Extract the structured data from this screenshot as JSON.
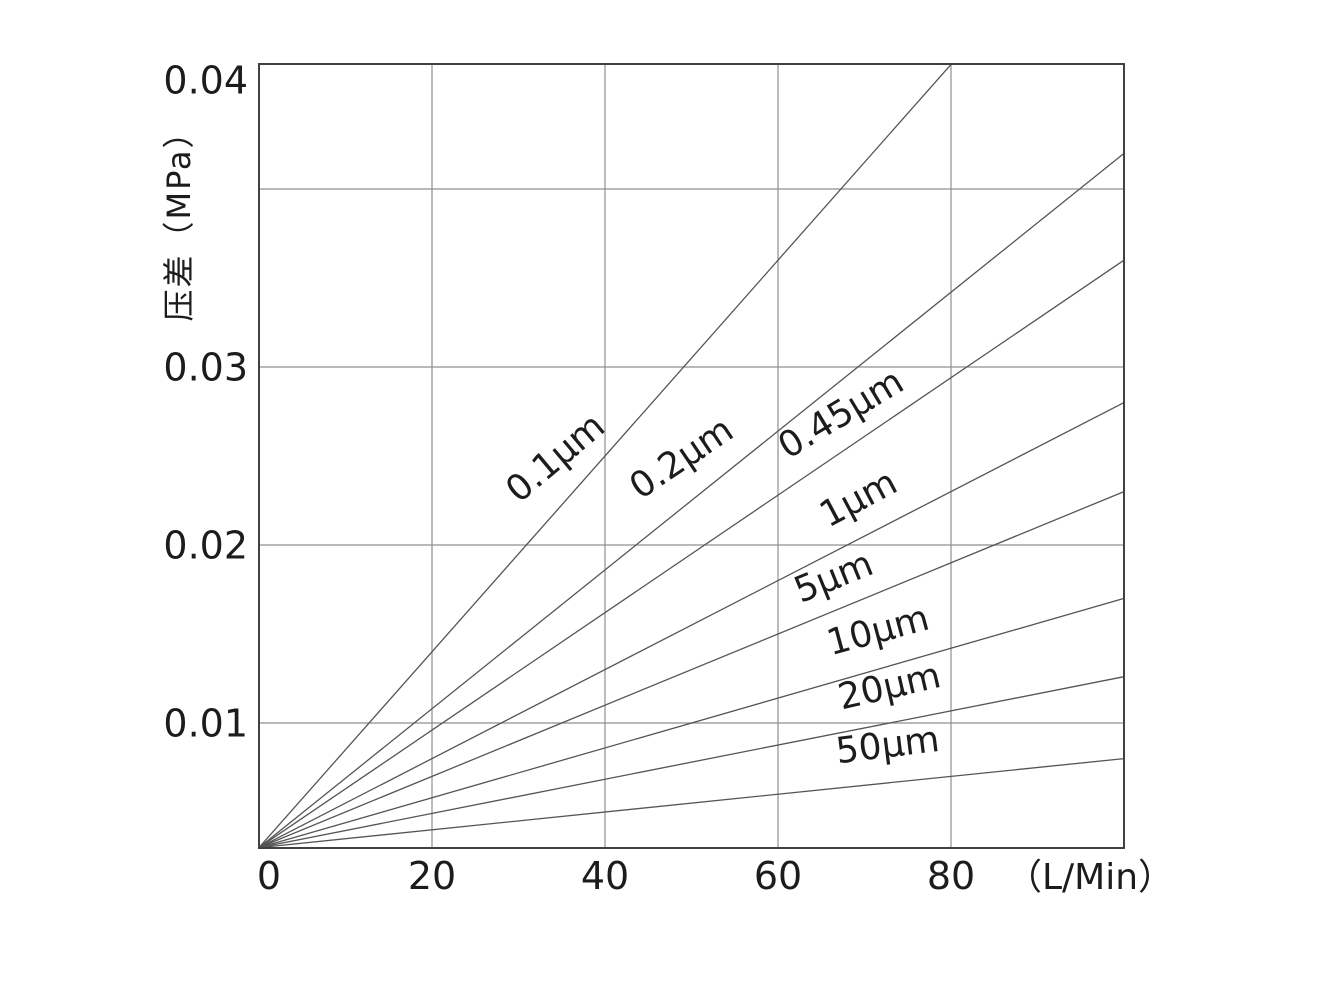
{
  "page": {
    "background": "#ffffff",
    "description": "Differential pressure vs flow rate curves for filter cartridges of different micron ratings"
  },
  "chart_data": {
    "type": "line",
    "title": "",
    "xlabel": "（L/Min）",
    "ylabel": "压差（MPa）",
    "x_axis": {
      "min": 0,
      "max": 100,
      "ticks": [
        0,
        20,
        40,
        60,
        80
      ],
      "tick_labels": [
        "0",
        "20",
        "40",
        "60",
        "80"
      ],
      "gridlines": [
        20,
        40,
        60,
        80
      ],
      "grid": true
    },
    "y_axis": {
      "min": 0.003,
      "max": 0.047,
      "ticks": [
        0.04,
        0.03,
        0.02,
        0.01
      ],
      "tick_labels": [
        "0.04",
        "0.03",
        "0.02",
        "0.01"
      ],
      "gridlines": [
        0.04,
        0.03,
        0.02,
        0.01
      ],
      "grid": true
    },
    "series": [
      {
        "name": "0.1μm",
        "points": [
          [
            0,
            0.003
          ],
          [
            80,
            0.047
          ]
        ]
      },
      {
        "name": "0.2μm",
        "points": [
          [
            0,
            0.003
          ],
          [
            100,
            0.042
          ]
        ]
      },
      {
        "name": "0.45μm",
        "points": [
          [
            0,
            0.003
          ],
          [
            100,
            0.036
          ]
        ]
      },
      {
        "name": "1μm",
        "points": [
          [
            0,
            0.003
          ],
          [
            100,
            0.028
          ]
        ]
      },
      {
        "name": "5μm",
        "points": [
          [
            0,
            0.003
          ],
          [
            100,
            0.023
          ]
        ]
      },
      {
        "name": "10μm",
        "points": [
          [
            0,
            0.003
          ],
          [
            100,
            0.017
          ]
        ]
      },
      {
        "name": "20μm",
        "points": [
          [
            0,
            0.003
          ],
          [
            100,
            0.0126
          ]
        ]
      },
      {
        "name": "50μm",
        "points": [
          [
            0,
            0.003
          ],
          [
            100,
            0.008
          ]
        ]
      }
    ],
    "legend_position": "labels rotated along each line",
    "colors": {
      "background": "#ffffff",
      "plot_border": "#414141",
      "gridline": "#8f8f8f",
      "line": "#555555",
      "text": "#1c1c1c"
    }
  }
}
